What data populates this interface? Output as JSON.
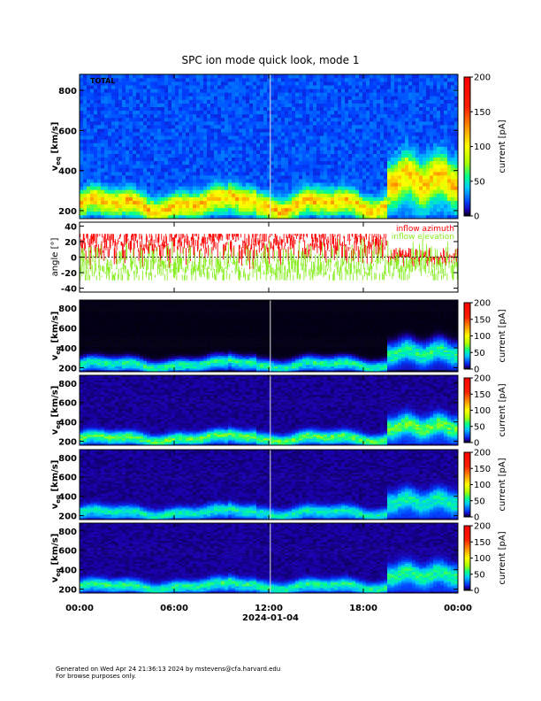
{
  "title": "SPC ion mode quick look, mode 1",
  "footer": {
    "line1": "Generated on Wed Apr 24 21:36:13 2024 by mstevens@cfa.harvard.edu",
    "line2": "For browse purposes only."
  },
  "chart_data": {
    "type": "heatmap",
    "title": "SPC ion mode quick look, mode 1",
    "x_ticks": [
      "00:00",
      "06:00",
      "12:00",
      "18:00",
      "00:00"
    ],
    "x_tick_hours": [
      0,
      6,
      12,
      18,
      24
    ],
    "x_range_hours": [
      0,
      24
    ],
    "xlabel": "2024-01-04",
    "marker_hour": 12.1,
    "panels": [
      {
        "kind": "spectrogram",
        "label": "TOTAL",
        "ylabel_main": "v",
        "ylabel_sub": "eq",
        "ylabel_unit": "[km/s]",
        "y_ticks": [
          200,
          400,
          600,
          800
        ],
        "ylim": [
          160,
          880
        ],
        "colorbar_label": "current [pA]",
        "colorbar_ticks": [
          0,
          50,
          100,
          150,
          200
        ],
        "colorbar_range": [
          0,
          200
        ],
        "background": "blue",
        "beam_peak_pa": 90
      },
      {
        "kind": "line",
        "ylabel": "angle [°]",
        "y_ticks": [
          -40,
          -20,
          0,
          20,
          40
        ],
        "ylim": [
          -45,
          45
        ],
        "series": [
          {
            "name": "inflow azimuth",
            "color": "#ff0000"
          },
          {
            "name": "inflow elevation",
            "color": "#88ee22"
          }
        ]
      },
      {
        "kind": "spectrogram",
        "label": "",
        "ylabel_main": "v",
        "ylabel_sub": "eq",
        "ylabel_unit": "[km/s]",
        "y_ticks": [
          200,
          400,
          600,
          800
        ],
        "ylim": [
          160,
          880
        ],
        "colorbar_label": "current [pA]",
        "colorbar_ticks": [
          0,
          50,
          100,
          150,
          200
        ],
        "colorbar_range": [
          0,
          200
        ],
        "background": "black",
        "beam_peak_pa": 55
      },
      {
        "kind": "spectrogram",
        "label": "",
        "ylabel_main": "v",
        "ylabel_sub": "eq",
        "ylabel_unit": "[km/s]",
        "y_ticks": [
          200,
          400,
          600,
          800
        ],
        "ylim": [
          160,
          880
        ],
        "colorbar_label": "current [pA]",
        "colorbar_ticks": [
          0,
          50,
          100,
          150,
          200
        ],
        "colorbar_range": [
          0,
          200
        ],
        "background": "purple",
        "beam_peak_pa": 60
      },
      {
        "kind": "spectrogram",
        "label": "",
        "ylabel_main": "v",
        "ylabel_sub": "eq",
        "ylabel_unit": "[km/s]",
        "y_ticks": [
          200,
          400,
          600,
          800
        ],
        "ylim": [
          160,
          880
        ],
        "colorbar_label": "current [pA]",
        "colorbar_ticks": [
          0,
          50,
          100,
          150,
          200
        ],
        "colorbar_range": [
          0,
          200
        ],
        "background": "purple",
        "beam_peak_pa": 45
      },
      {
        "kind": "spectrogram",
        "label": "",
        "ylabel_main": "v",
        "ylabel_sub": "eq",
        "ylabel_unit": "[km/s]",
        "y_ticks": [
          200,
          400,
          600,
          800
        ],
        "ylim": [
          160,
          880
        ],
        "colorbar_label": "current [pA]",
        "colorbar_ticks": [
          0,
          50,
          100,
          150,
          200
        ],
        "colorbar_range": [
          0,
          200
        ],
        "background": "purple",
        "beam_peak_pa": 50
      }
    ]
  }
}
